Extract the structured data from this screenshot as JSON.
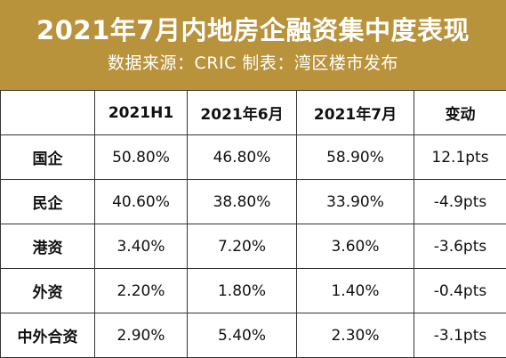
{
  "header": {
    "title": "2021年7月内地房企融资集中度表现",
    "subtitle": "数据来源：CRIC 制表：湾区楼市发布",
    "bg_color": "#b9933b",
    "text_color": "#ffffff"
  },
  "table": {
    "columns": [
      "",
      "2021H1",
      "2021年6月",
      "2021年7月",
      "变动"
    ],
    "rows": [
      {
        "label": "国企",
        "h1": "50.80%",
        "jun": "46.80%",
        "jul": "58.90%",
        "change": "12.1pts"
      },
      {
        "label": "民企",
        "h1": "40.60%",
        "jun": "38.80%",
        "jul": "33.90%",
        "change": "-4.9pts"
      },
      {
        "label": "港资",
        "h1": "3.40%",
        "jun": "7.20%",
        "jul": "3.60%",
        "change": "-3.6pts"
      },
      {
        "label": "外资",
        "h1": "2.20%",
        "jun": "1.80%",
        "jul": "1.40%",
        "change": "-0.4pts"
      },
      {
        "label": "中外合资",
        "h1": "2.90%",
        "jun": "5.40%",
        "jul": "2.30%",
        "change": "-3.1pts"
      }
    ]
  }
}
